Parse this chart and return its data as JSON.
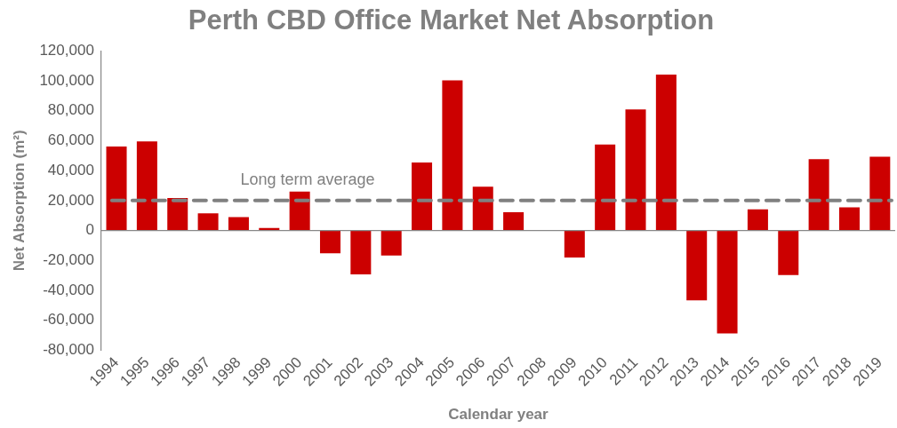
{
  "chart_data": {
    "type": "bar",
    "title": "Perth CBD Office Market Net Absorption",
    "xlabel": "Calendar year",
    "ylabel": "Net Absorption (m²)",
    "categories": [
      "1994",
      "1995",
      "1996",
      "1997",
      "1998",
      "1999",
      "2000",
      "2001",
      "2002",
      "2003",
      "2004",
      "2005",
      "2006",
      "2007",
      "2008",
      "2009",
      "2010",
      "2011",
      "2012",
      "2013",
      "2014",
      "2015",
      "2016",
      "2017",
      "2018",
      "2019"
    ],
    "values": [
      56000,
      59500,
      21700,
      11500,
      8900,
      1700,
      25900,
      -15200,
      -29300,
      -16700,
      45400,
      100200,
      29300,
      12200,
      0,
      -18000,
      57400,
      80900,
      104100,
      -46700,
      -68700,
      14100,
      -29800,
      47600,
      15400,
      49300
    ],
    "color": "#cc0000",
    "ylim": [
      -80000,
      120000
    ],
    "yticks": [
      {
        "value": -80000,
        "label": "-80,000"
      },
      {
        "value": -60000,
        "label": "-60,000"
      },
      {
        "value": -40000,
        "label": "-40,000"
      },
      {
        "value": -20000,
        "label": "-20,000"
      },
      0,
      {
        "value": 20000,
        "label": "20,000"
      },
      {
        "value": 40000,
        "label": "40,000"
      },
      {
        "value": 60000,
        "label": "60,000"
      },
      {
        "value": 80000,
        "label": "80,000"
      },
      {
        "value": 100000,
        "label": "100,000"
      },
      {
        "value": 120000,
        "label": "120,000"
      }
    ],
    "ref_lines": [
      {
        "axis": "y",
        "value": 20000,
        "label": "Long term average",
        "color": "#808080",
        "line_style": "dashed"
      }
    ],
    "grid": false,
    "legend": false
  }
}
